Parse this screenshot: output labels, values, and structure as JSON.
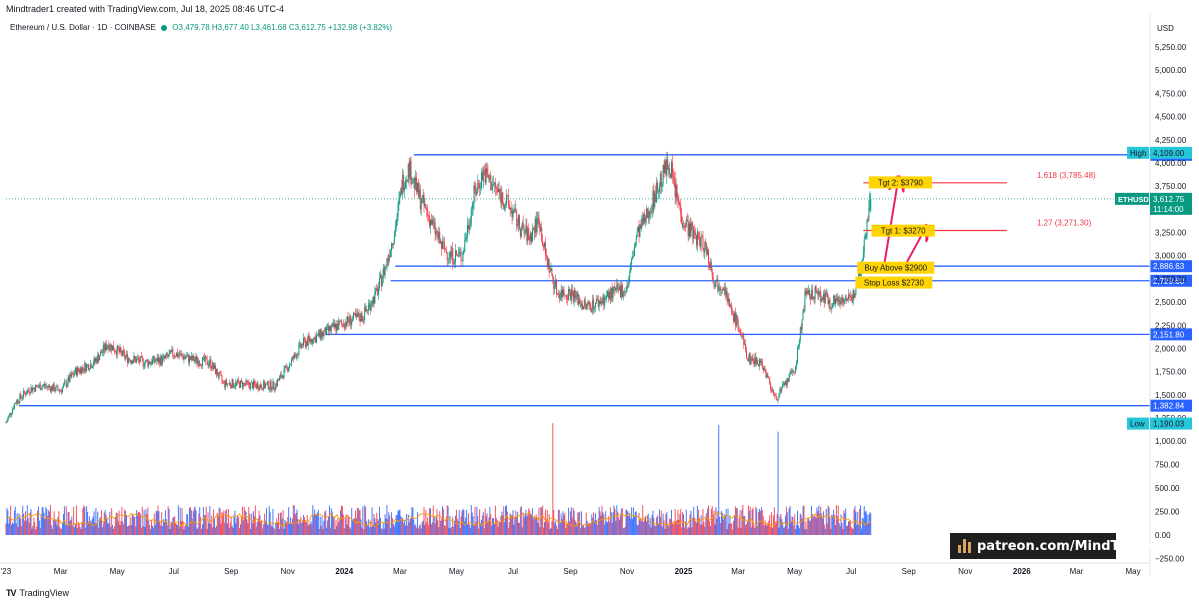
{
  "header": {
    "author_line": "Mindtrader1 created with TradingView.com, Jul 18, 2025 08:46 UTC-4"
  },
  "symbol": {
    "name": "Ethereum / U.S. Dollar · 1D · COINBASE",
    "open": "O3,479.78",
    "high": "H3,677.40",
    "low": "L3,461.68",
    "close": "C3,612.75",
    "change": "+132.98 (+3.82%)"
  },
  "footer": {
    "brand": "TradingView",
    "logo_text": "TV"
  },
  "watermark": {
    "text": "patreon.com/MindTrader"
  },
  "colors": {
    "up": "#089981",
    "down": "#f23645",
    "level": "#2962ff",
    "target": "#f23645",
    "label_bg": "#ffd400",
    "volume_up": "#2962ff",
    "volume_down": "#f23645",
    "volume_ma": "#ff9800"
  },
  "chart_data": {
    "type": "candlestick",
    "currency": "USD",
    "y_price_range": [
      1100,
      5450
    ],
    "price_ticks": [
      5250,
      5000,
      4750,
      4500,
      4250,
      4000,
      3750,
      3500,
      3250,
      3000,
      2750,
      2500,
      2250,
      2000,
      1750,
      1500,
      1250
    ],
    "price_tick_labels": [
      "5,250.00",
      "5,000.00",
      "4,750.00",
      "4,500.00",
      "4,250.00",
      "4,000.00",
      "3,750.00",
      "3,500.00",
      "3,250.00",
      "3,000.00",
      "2,750.00",
      "2,500.00",
      "2,250.00",
      "2,000.00",
      "1,750.00",
      "1,500.00",
      "1,250.00"
    ],
    "volume_ticks": [
      1000,
      750,
      500,
      250,
      0,
      -250
    ],
    "volume_tick_labels": [
      "1,000.00",
      "750.00",
      "500.00",
      "250.00",
      "0.00",
      "−250.00"
    ],
    "x_ticks": [
      {
        "t": 0,
        "label": "'23"
      },
      {
        "t": 59,
        "label": "Mar"
      },
      {
        "t": 120,
        "label": "May"
      },
      {
        "t": 181,
        "label": "Jul"
      },
      {
        "t": 243,
        "label": "Sep"
      },
      {
        "t": 304,
        "label": "Nov"
      },
      {
        "t": 365,
        "label": "2024"
      },
      {
        "t": 425,
        "label": "Mar"
      },
      {
        "t": 486,
        "label": "May"
      },
      {
        "t": 547,
        "label": "Jul"
      },
      {
        "t": 609,
        "label": "Sep"
      },
      {
        "t": 670,
        "label": "Nov"
      },
      {
        "t": 731,
        "label": "2025"
      },
      {
        "t": 790,
        "label": "Mar"
      },
      {
        "t": 851,
        "label": "May"
      },
      {
        "t": 912,
        "label": "Jul"
      },
      {
        "t": 974,
        "label": "Sep"
      },
      {
        "t": 1035,
        "label": "Nov"
      },
      {
        "t": 1096,
        "label": "2026"
      },
      {
        "t": 1155,
        "label": "Mar"
      },
      {
        "t": 1216,
        "label": "May"
      }
    ],
    "x_range": [
      0,
      1230
    ],
    "price_path": [
      [
        0,
        1200
      ],
      [
        10,
        1420
      ],
      [
        25,
        1560
      ],
      [
        40,
        1600
      ],
      [
        59,
        1550
      ],
      [
        75,
        1750
      ],
      [
        95,
        1850
      ],
      [
        110,
        2050
      ],
      [
        130,
        1900
      ],
      [
        150,
        1850
      ],
      [
        170,
        1880
      ],
      [
        181,
        1950
      ],
      [
        200,
        1880
      ],
      [
        220,
        1850
      ],
      [
        235,
        1620
      ],
      [
        250,
        1620
      ],
      [
        270,
        1600
      ],
      [
        290,
        1600
      ],
      [
        304,
        1800
      ],
      [
        320,
        2050
      ],
      [
        340,
        2150
      ],
      [
        365,
        2280
      ],
      [
        385,
        2350
      ],
      [
        400,
        2600
      ],
      [
        410,
        2900
      ],
      [
        420,
        3300
      ],
      [
        428,
        3800
      ],
      [
        435,
        3950
      ],
      [
        445,
        3650
      ],
      [
        455,
        3450
      ],
      [
        470,
        3100
      ],
      [
        480,
        3000
      ],
      [
        492,
        3000
      ],
      [
        505,
        3650
      ],
      [
        515,
        3900
      ],
      [
        530,
        3700
      ],
      [
        545,
        3500
      ],
      [
        555,
        3300
      ],
      [
        565,
        3200
      ],
      [
        575,
        3400
      ],
      [
        582,
        3000
      ],
      [
        595,
        2600
      ],
      [
        610,
        2600
      ],
      [
        625,
        2450
      ],
      [
        640,
        2500
      ],
      [
        655,
        2600
      ],
      [
        670,
        2650
      ],
      [
        680,
        3200
      ],
      [
        690,
        3400
      ],
      [
        700,
        3650
      ],
      [
        710,
        3900
      ],
      [
        716,
        4000
      ],
      [
        722,
        3700
      ],
      [
        730,
        3400
      ],
      [
        740,
        3250
      ],
      [
        755,
        3100
      ],
      [
        765,
        2700
      ],
      [
        775,
        2700
      ],
      [
        780,
        2450
      ],
      [
        790,
        2250
      ],
      [
        800,
        1900
      ],
      [
        815,
        1850
      ],
      [
        825,
        1600
      ],
      [
        830,
        1450
      ],
      [
        840,
        1600
      ],
      [
        852,
        1800
      ],
      [
        862,
        2550
      ],
      [
        875,
        2600
      ],
      [
        890,
        2500
      ],
      [
        905,
        2550
      ],
      [
        912,
        2500
      ],
      [
        920,
        2800
      ],
      [
        925,
        3050
      ],
      [
        930,
        3480
      ],
      [
        933,
        3612.75
      ]
    ],
    "last_bar_t": 933,
    "ohlc_last": {
      "open": 3479.78,
      "high": 3677.4,
      "low": 3461.68,
      "close": 3612.75
    },
    "horizontal_levels": [
      {
        "price": 4087.63,
        "label": "4,087.63",
        "t_start": 440
      },
      {
        "price": 2886.63,
        "label": "2,886.63",
        "t_start": 420
      },
      {
        "price": 2729.6,
        "label": "2,729.60",
        "t_start": 415
      },
      {
        "price": 2151.8,
        "label": "2,151.80",
        "t_start": 345
      },
      {
        "price": 1382.84,
        "label": "1,382.84",
        "t_start": 14
      }
    ],
    "high_marker": {
      "price": 4109.0,
      "tag": "High",
      "label": "4,109.00"
    },
    "low_marker": {
      "price": 1190.03,
      "tag": "Low",
      "label": "1,190.03"
    },
    "last_price": {
      "symbol": "ETHUSD",
      "price": 3612.75,
      "label": "3,612.75",
      "countdown": "11:14:00"
    },
    "fib_targets": [
      {
        "price": 3785.48,
        "label": "1.618 (3,785.48)",
        "t_start": 925,
        "t_end": 1080
      },
      {
        "price": 3271.3,
        "label": "1.27 (3,271.30)",
        "t_start": 925,
        "t_end": 1080
      }
    ],
    "annotations": [
      {
        "text": "Tgt 2: $3790",
        "price": 3790,
        "t": 965
      },
      {
        "text": "Tgt 1: $3270",
        "price": 3270,
        "t": 968
      },
      {
        "text": "Buy Above $2900",
        "price": 2870,
        "t": 960
      },
      {
        "text": "Stop Loss $2730",
        "price": 2710,
        "t": 958
      }
    ],
    "arrows": [
      {
        "from": [
          948,
          2930
        ],
        "to": [
          962,
          3780
        ]
      },
      {
        "from": [
          972,
          2930
        ],
        "to": [
          990,
          3260
        ]
      }
    ],
    "volume_spikes": [
      {
        "t": 590,
        "v": 1190
      },
      {
        "t": 769,
        "v": 1170
      },
      {
        "t": 833,
        "v": 1100
      }
    ]
  }
}
